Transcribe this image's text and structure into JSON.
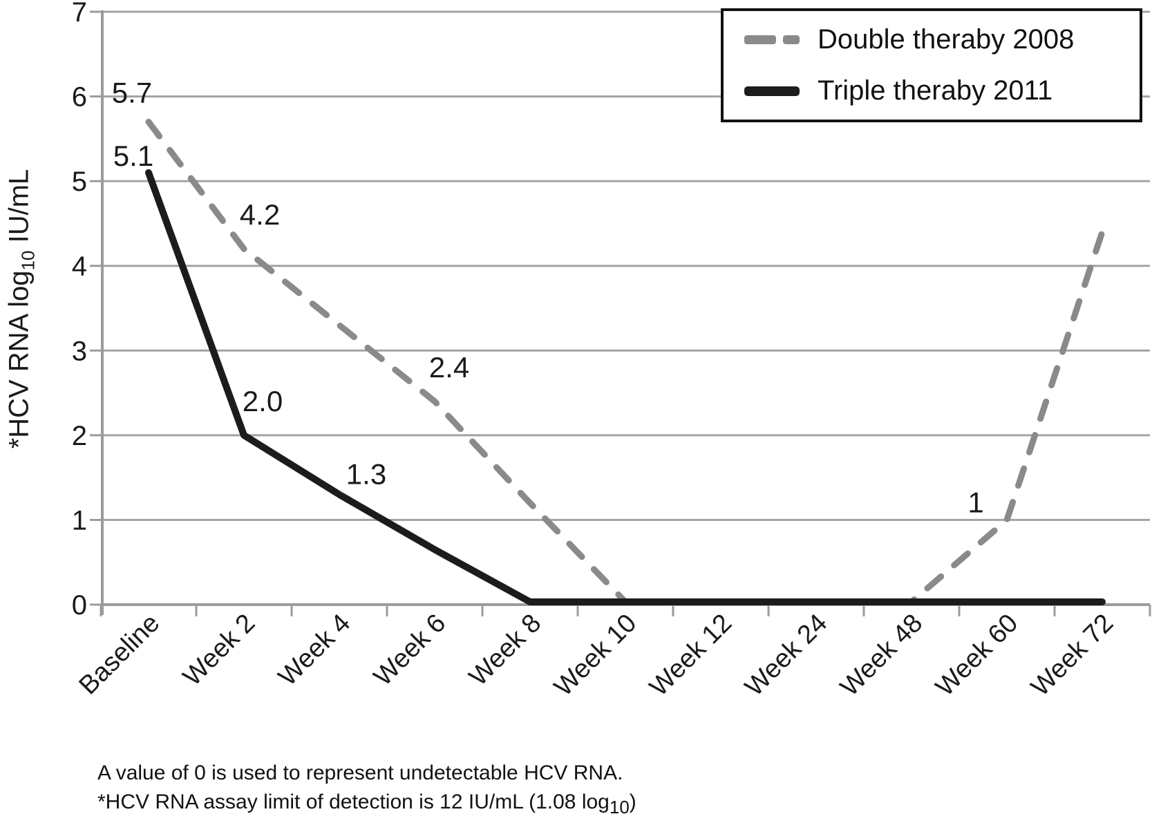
{
  "chart_data": {
    "type": "line",
    "title": "",
    "categories": [
      "Baseline",
      "Week 2",
      "Week 4",
      "Week 6",
      "Week 8",
      "Week 10",
      "Week 12",
      "Week 24",
      "Week 48",
      "Week 60",
      "Week 72"
    ],
    "series": [
      {
        "name": "Double theraby 2008",
        "line_style": "dashed",
        "color": "#8a8a8a",
        "values": [
          5.7,
          4.2,
          3.3,
          2.4,
          1.2,
          0,
          0,
          0,
          0,
          1,
          4.4
        ],
        "point_labels": [
          "5.7",
          "4.2",
          null,
          "2.4",
          null,
          null,
          null,
          null,
          null,
          "1",
          null
        ]
      },
      {
        "name": "Triple theraby 2011",
        "line_style": "solid",
        "color": "#1c1c1c",
        "values": [
          5.1,
          2.0,
          1.3,
          0.65,
          0,
          0,
          0,
          0,
          0,
          0,
          0
        ],
        "point_labels": [
          "5.1",
          "2.0",
          "1.3",
          null,
          null,
          null,
          null,
          null,
          null,
          null,
          null
        ]
      }
    ],
    "xlabel": "",
    "ylabel": "*HCV RNA log10 IU/mL",
    "ylim": [
      0,
      7
    ],
    "yticks": [
      0,
      1,
      2,
      3,
      4,
      5,
      6,
      7
    ],
    "grid": true,
    "legend_position": "top-right"
  },
  "ylabel_parts": {
    "prefix": "*HCV RNA log",
    "sub": "10",
    "suffix": " IU/mL"
  },
  "footnote": {
    "line1": "A value of 0 is used to represent undetectable HCV RNA.",
    "line2_prefix": "*HCV RNA assay limit of detection is 12 IU/mL (1.08 log",
    "line2_sub": "10",
    "line2_suffix": ")"
  },
  "colors": {
    "grid": "#a2a2a2",
    "axis": "#9b9b9b",
    "tick_text": "#1a1a1a",
    "legend_border": "#111111",
    "background": "#ffffff"
  }
}
